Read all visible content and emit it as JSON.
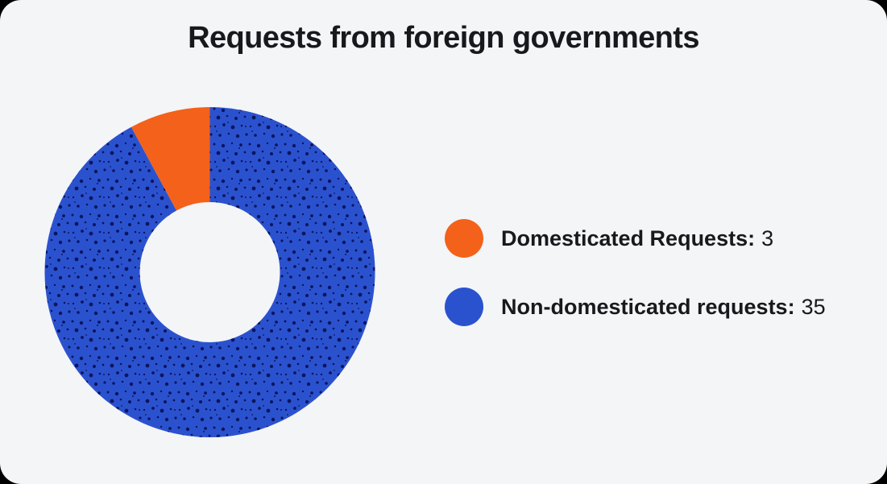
{
  "page": {
    "outer_background": "#000000",
    "card_background": "#F3F5F7",
    "text_color": "#17191D"
  },
  "title": "Requests from foreign governments",
  "chart_data": {
    "type": "pie",
    "subtype": "donut",
    "title": "Requests from foreign governments",
    "total": 38,
    "start_angle_deg": 0,
    "direction": "clockwise",
    "inner_radius_ratio": 0.425,
    "legend_position": "right",
    "segments": [
      {
        "label": "Non-domesticated requests",
        "value": 35,
        "color": "#2B52CE",
        "pattern": "halftone-dots",
        "pattern_dot_color": "#0C1460"
      },
      {
        "label": "Domesticated Requests",
        "value": 3,
        "color": "#F4611A",
        "pattern": "solid"
      }
    ]
  },
  "legend": {
    "items": [
      {
        "swatch_color": "#F4611A",
        "label": "Domesticated Requests:",
        "value": "3"
      },
      {
        "swatch_color": "#2B52CE",
        "label": "Non-domesticated requests:",
        "value": "35"
      }
    ]
  }
}
